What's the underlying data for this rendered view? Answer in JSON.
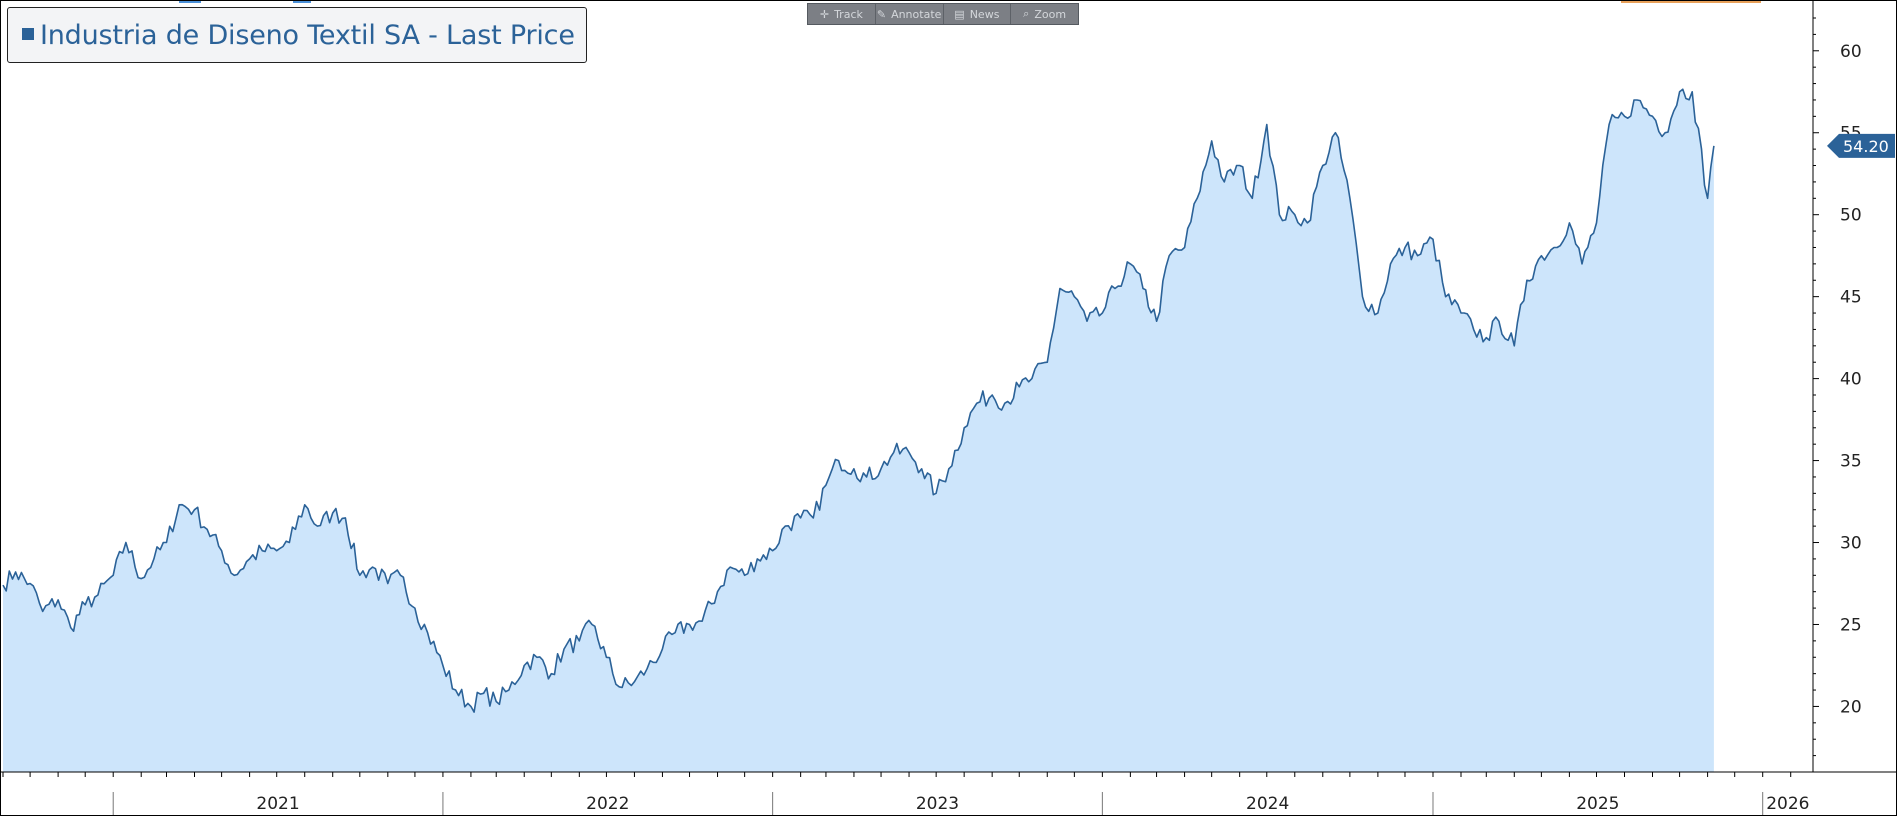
{
  "legend": {
    "label": "Industria de Diseno Textil SA - Last Price",
    "color": "#2b6298"
  },
  "toolbar": {
    "track": "Track",
    "annotate": "Annotate",
    "news": "News",
    "zoom": "Zoom",
    "track_icon": "crosshair-icon",
    "annotate_icon": "pencil-icon",
    "news_icon": "newspaper-icon",
    "zoom_icon": "magnifier-icon"
  },
  "colors": {
    "line": "#2b6298",
    "fill": "#cde5fb",
    "label_bg": "#2b6298"
  },
  "chart_data": {
    "type": "area",
    "title": "",
    "xlabel": "",
    "ylabel": "",
    "ylim": [
      16,
      62
    ],
    "xlim": [
      "2020-09-01",
      "2026-03-01"
    ],
    "y_ticks": [
      20,
      25,
      30,
      35,
      40,
      45,
      50,
      55,
      60
    ],
    "x_labels": [
      "2021",
      "2022",
      "2023",
      "2024",
      "2025",
      "2026"
    ],
    "grid": false,
    "legend_position": "top-left",
    "last_value": 54.2,
    "last_value_label": "54.20",
    "series": [
      {
        "name": "Industria de Diseno Textil SA - Last Price",
        "points": [
          [
            "2020-09-01",
            27.4
          ],
          [
            "2020-09-15",
            28.2
          ],
          [
            "2020-10-01",
            27.5
          ],
          [
            "2020-10-15",
            25.8
          ],
          [
            "2020-11-01",
            26.5
          ],
          [
            "2020-11-15",
            24.8
          ],
          [
            "2020-12-01",
            26.2
          ],
          [
            "2020-12-15",
            26.8
          ],
          [
            "2021-01-01",
            28.0
          ],
          [
            "2021-01-15",
            30.0
          ],
          [
            "2021-02-01",
            27.8
          ],
          [
            "2021-02-15",
            29.0
          ],
          [
            "2021-03-01",
            30.0
          ],
          [
            "2021-03-15",
            32.3
          ],
          [
            "2021-04-01",
            32.0
          ],
          [
            "2021-04-15",
            30.8
          ],
          [
            "2021-05-01",
            29.5
          ],
          [
            "2021-05-15",
            28.0
          ],
          [
            "2021-06-01",
            29.0
          ],
          [
            "2021-06-15",
            29.5
          ],
          [
            "2021-07-01",
            29.5
          ],
          [
            "2021-07-15",
            30.0
          ],
          [
            "2021-08-01",
            32.3
          ],
          [
            "2021-08-15",
            31.0
          ],
          [
            "2021-09-01",
            31.8
          ],
          [
            "2021-09-15",
            31.5
          ],
          [
            "2021-10-01",
            28.0
          ],
          [
            "2021-10-15",
            28.5
          ],
          [
            "2021-11-01",
            27.5
          ],
          [
            "2021-11-15",
            28.0
          ],
          [
            "2021-12-01",
            26.0
          ],
          [
            "2021-12-15",
            24.5
          ],
          [
            "2022-01-01",
            22.5
          ],
          [
            "2022-01-15",
            21.0
          ],
          [
            "2022-02-01",
            20.0
          ],
          [
            "2022-02-15",
            20.8
          ],
          [
            "2022-03-01",
            20.3
          ],
          [
            "2022-03-15",
            21.0
          ],
          [
            "2022-04-01",
            22.5
          ],
          [
            "2022-04-15",
            23.0
          ],
          [
            "2022-05-01",
            22.0
          ],
          [
            "2022-05-15",
            23.5
          ],
          [
            "2022-06-01",
            24.0
          ],
          [
            "2022-06-15",
            25.0
          ],
          [
            "2022-07-01",
            23.0
          ],
          [
            "2022-07-15",
            21.2
          ],
          [
            "2022-08-01",
            21.5
          ],
          [
            "2022-08-15",
            22.3
          ],
          [
            "2022-09-01",
            23.5
          ],
          [
            "2022-09-15",
            24.5
          ],
          [
            "2022-10-01",
            25.0
          ],
          [
            "2022-10-15",
            25.2
          ],
          [
            "2022-11-01",
            27.0
          ],
          [
            "2022-11-15",
            28.5
          ],
          [
            "2022-12-01",
            28.0
          ],
          [
            "2022-12-15",
            29.0
          ],
          [
            "2023-01-01",
            29.5
          ],
          [
            "2023-01-15",
            31.0
          ],
          [
            "2023-02-01",
            31.5
          ],
          [
            "2023-02-15",
            31.5
          ],
          [
            "2023-03-01",
            33.5
          ],
          [
            "2023-03-15",
            35.0
          ],
          [
            "2023-04-01",
            34.5
          ],
          [
            "2023-04-15",
            34.0
          ],
          [
            "2023-05-01",
            34.5
          ],
          [
            "2023-05-15",
            35.5
          ],
          [
            "2023-06-01",
            35.5
          ],
          [
            "2023-06-15",
            34.5
          ],
          [
            "2023-07-01",
            33.0
          ],
          [
            "2023-07-15",
            34.5
          ],
          [
            "2023-08-01",
            37.0
          ],
          [
            "2023-08-15",
            38.5
          ],
          [
            "2023-09-01",
            39.0
          ],
          [
            "2023-09-15",
            38.5
          ],
          [
            "2023-10-01",
            39.5
          ],
          [
            "2023-10-15",
            40.0
          ],
          [
            "2023-11-01",
            41.0
          ],
          [
            "2023-11-15",
            45.5
          ],
          [
            "2023-12-01",
            45.0
          ],
          [
            "2023-12-15",
            43.5
          ],
          [
            "2024-01-01",
            44.0
          ],
          [
            "2024-01-15",
            45.5
          ],
          [
            "2024-02-01",
            47.0
          ],
          [
            "2024-02-15",
            45.5
          ],
          [
            "2024-03-01",
            43.5
          ],
          [
            "2024-03-15",
            47.5
          ],
          [
            "2024-04-01",
            48.0
          ],
          [
            "2024-04-15",
            51.0
          ],
          [
            "2024-05-01",
            54.5
          ],
          [
            "2024-05-15",
            52.0
          ],
          [
            "2024-06-01",
            53.0
          ],
          [
            "2024-06-15",
            51.0
          ],
          [
            "2024-07-01",
            55.5
          ],
          [
            "2024-07-15",
            50.0
          ],
          [
            "2024-08-01",
            50.0
          ],
          [
            "2024-08-15",
            49.5
          ],
          [
            "2024-09-01",
            53.0
          ],
          [
            "2024-09-15",
            55.0
          ],
          [
            "2024-10-01",
            51.0
          ],
          [
            "2024-10-15",
            45.0
          ],
          [
            "2024-11-01",
            44.0
          ],
          [
            "2024-11-15",
            47.0
          ],
          [
            "2024-12-01",
            48.0
          ],
          [
            "2024-12-15",
            47.5
          ],
          [
            "2025-01-01",
            48.5
          ],
          [
            "2025-01-15",
            45.0
          ],
          [
            "2025-02-01",
            44.0
          ],
          [
            "2025-02-15",
            43.0
          ],
          [
            "2025-03-01",
            42.5
          ],
          [
            "2025-03-15",
            43.5
          ],
          [
            "2025-04-01",
            42.0
          ],
          [
            "2025-04-15",
            46.0
          ],
          [
            "2025-05-01",
            47.5
          ],
          [
            "2025-05-15",
            48.0
          ],
          [
            "2025-06-01",
            49.5
          ],
          [
            "2025-06-15",
            47.0
          ],
          [
            "2025-07-01",
            49.5
          ],
          [
            "2025-07-15",
            55.5
          ],
          [
            "2025-08-01",
            56.0
          ],
          [
            "2025-08-15",
            57.0
          ],
          [
            "2025-09-01",
            56.0
          ],
          [
            "2025-09-15",
            55.0
          ],
          [
            "2025-10-01",
            57.5
          ],
          [
            "2025-10-15",
            57.5
          ],
          [
            "2025-11-01",
            51.0
          ],
          [
            "2025-11-08",
            54.2
          ]
        ]
      }
    ]
  }
}
